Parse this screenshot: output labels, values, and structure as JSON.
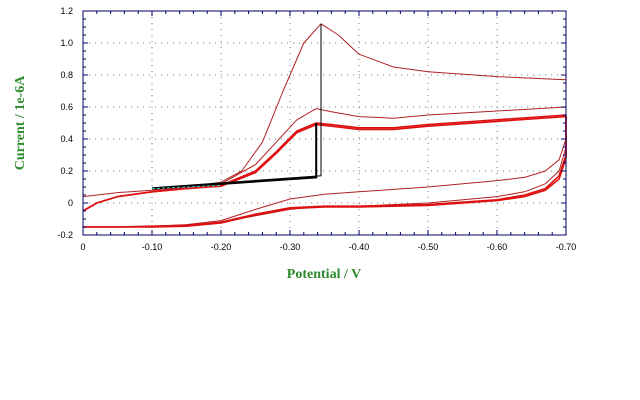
{
  "chart_data": {
    "type": "line",
    "title": "",
    "xlabel": "Potential / V",
    "ylabel": "Current / 1e-6A",
    "xlim": [
      0,
      -0.7
    ],
    "ylim": [
      -0.2,
      1.2
    ],
    "x_reversed": true,
    "grid": true,
    "x_ticks": [
      "0",
      "-0.10",
      "-0.20",
      "-0.30",
      "-0.40",
      "-0.50",
      "-0.60",
      "-0.70"
    ],
    "x_tick_values": [
      0,
      -0.1,
      -0.2,
      -0.3,
      -0.4,
      -0.5,
      -0.6,
      -0.7
    ],
    "y_ticks": [
      "1.2",
      "1.0",
      "0.8",
      "0.6",
      "0.4",
      "0.2",
      "0",
      "-0.2"
    ],
    "y_tick_values": [
      1.2,
      1.0,
      0.8,
      0.6,
      0.4,
      0.2,
      0,
      -0.2
    ],
    "colors": {
      "curve": "#b22222",
      "curve_bold": "#dd1111",
      "baseline": "#000000",
      "baseline_alt": "#33cccc",
      "axis": "#000066",
      "label": "#2e8b2e"
    },
    "series": [
      {
        "x": [
          0,
          -0.05,
          -0.1,
          -0.15,
          -0.2,
          -0.23,
          -0.26,
          -0.29,
          -0.32,
          -0.345,
          -0.37,
          -0.4,
          -0.45,
          -0.5,
          -0.6,
          -0.7,
          -0.7,
          -0.69,
          -0.67,
          -0.64,
          -0.6,
          -0.5,
          -0.4,
          -0.35,
          -0.3,
          -0.25,
          -0.2,
          -0.15,
          -0.1,
          -0.05,
          0
        ],
        "y": [
          0.04,
          0.065,
          0.08,
          0.1,
          0.13,
          0.2,
          0.38,
          0.7,
          1.0,
          1.12,
          1.05,
          0.93,
          0.85,
          0.82,
          0.79,
          0.77,
          0.4,
          0.27,
          0.2,
          0.16,
          0.14,
          0.1,
          0.07,
          0.055,
          0.025,
          -0.04,
          -0.11,
          -0.135,
          -0.145,
          -0.15,
          -0.15
        ]
      },
      {
        "x": [
          0,
          -0.02,
          -0.05,
          -0.1,
          -0.15,
          -0.2,
          -0.25,
          -0.28,
          -0.31,
          -0.338,
          -0.36,
          -0.4,
          -0.45,
          -0.5,
          -0.6,
          -0.7,
          -0.7,
          -0.69,
          -0.67,
          -0.64,
          -0.6,
          -0.5,
          -0.4,
          -0.35,
          -0.3,
          -0.25,
          -0.2,
          -0.15,
          -0.1,
          -0.05,
          0
        ],
        "y": [
          -0.05,
          0.0,
          0.04,
          0.07,
          0.1,
          0.12,
          0.24,
          0.38,
          0.52,
          0.59,
          0.57,
          0.54,
          0.53,
          0.55,
          0.575,
          0.6,
          0.35,
          0.2,
          0.12,
          0.07,
          0.04,
          0.0,
          -0.02,
          -0.02,
          -0.04,
          -0.08,
          -0.12,
          -0.14,
          -0.145,
          -0.15,
          -0.15
        ]
      },
      {
        "x": [
          0,
          -0.02,
          -0.05,
          -0.1,
          -0.15,
          -0.2,
          -0.25,
          -0.28,
          -0.31,
          -0.338,
          -0.36,
          -0.4,
          -0.45,
          -0.5,
          -0.6,
          -0.7,
          -0.7,
          -0.69,
          -0.67,
          -0.64,
          -0.6,
          -0.5,
          -0.4,
          -0.35,
          -0.3,
          -0.25,
          -0.2,
          -0.15,
          -0.1,
          -0.05,
          0
        ],
        "y": [
          -0.05,
          0.0,
          0.04,
          0.07,
          0.09,
          0.11,
          0.2,
          0.32,
          0.45,
          0.5,
          0.49,
          0.47,
          0.47,
          0.49,
          0.52,
          0.55,
          0.3,
          0.17,
          0.09,
          0.05,
          0.02,
          -0.01,
          -0.02,
          -0.02,
          -0.03,
          -0.07,
          -0.12,
          -0.14,
          -0.145,
          -0.15,
          -0.15
        ]
      },
      {
        "x": [
          0,
          -0.02,
          -0.05,
          -0.1,
          -0.15,
          -0.2,
          -0.25,
          -0.28,
          -0.31,
          -0.338,
          -0.36,
          -0.4,
          -0.45,
          -0.5,
          -0.6,
          -0.7,
          -0.7,
          -0.69,
          -0.67,
          -0.64,
          -0.6,
          -0.5,
          -0.4,
          -0.35,
          -0.3,
          -0.25,
          -0.2,
          -0.15,
          -0.1,
          -0.05,
          0
        ],
        "y": [
          -0.05,
          0.0,
          0.04,
          0.07,
          0.09,
          0.105,
          0.19,
          0.31,
          0.44,
          0.49,
          0.48,
          0.46,
          0.46,
          0.48,
          0.51,
          0.54,
          0.28,
          0.15,
          0.08,
          0.04,
          0.015,
          -0.015,
          -0.025,
          -0.025,
          -0.035,
          -0.075,
          -0.125,
          -0.145,
          -0.15,
          -0.15,
          -0.15
        ]
      }
    ],
    "baselines": [
      {
        "x": [
          -0.1,
          -0.338,
          -0.338,
          -0.338
        ],
        "y": [
          0.09,
          0.16,
          0.16,
          0.5
        ]
      },
      {
        "x": [
          -0.1,
          -0.345,
          -0.345
        ],
        "y": [
          0.095,
          0.17,
          1.12
        ]
      },
      {
        "x": [
          -0.1,
          -0.2
        ],
        "y": [
          0.09,
          0.11
        ],
        "dashed": true
      }
    ]
  }
}
